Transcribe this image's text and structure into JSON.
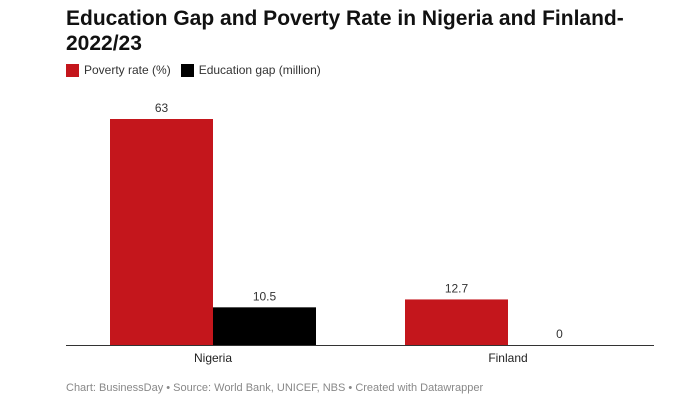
{
  "chart_data": {
    "type": "bar",
    "title": "Education Gap and Poverty Rate in Nigeria and Finland-2022/23",
    "categories": [
      "Nigeria",
      "Finland"
    ],
    "series": [
      {
        "name": "Poverty rate (%)",
        "values": [
          63,
          12.7
        ],
        "color": "#c4161c",
        "labels": [
          "63",
          "12.7"
        ]
      },
      {
        "name": "Education gap (million)",
        "values": [
          10.5,
          0
        ],
        "color": "#000000",
        "labels": [
          "10.5",
          "0"
        ]
      }
    ],
    "ylim": [
      0,
      63
    ],
    "grid": false,
    "legend": "top-left",
    "xlabel": "",
    "ylabel": ""
  },
  "footer": "Chart: BusinessDay • Source: World Bank, UNICEF, NBS • Created with Datawrapper"
}
